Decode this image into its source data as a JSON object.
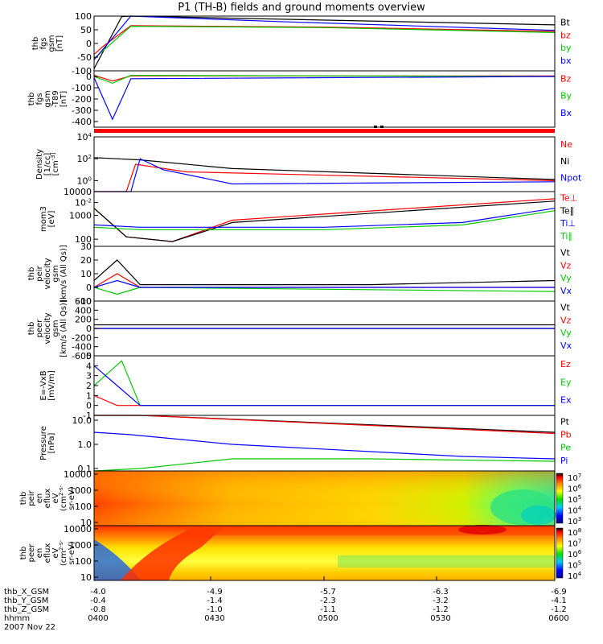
{
  "title": "P1 (TH-B) fields and ground moments overview",
  "chart_data": [
    {
      "type": "line",
      "ylabel": [
        "thb",
        "fgs",
        "gsm",
        "[nT]"
      ],
      "scale": "linear",
      "ylim": [
        -100,
        100
      ],
      "ticks": [
        "100",
        "50",
        "0",
        "-50",
        "-100"
      ],
      "tick_values": [
        100,
        50,
        0,
        -50,
        -100
      ],
      "series": [
        {
          "name": "Bt",
          "color": "#000000",
          "points": [
            [
              0,
              -92
            ],
            [
              0.06,
              98
            ],
            [
              0.08,
              100
            ],
            [
              1,
              68
            ]
          ]
        },
        {
          "name": "bz",
          "color": "#ff0000",
          "points": [
            [
              0,
              -40
            ],
            [
              0.02,
              -10
            ],
            [
              0.08,
              65
            ],
            [
              0.5,
              60
            ],
            [
              1,
              44
            ]
          ]
        },
        {
          "name": "by",
          "color": "#00c800",
          "points": [
            [
              0,
              -55
            ],
            [
              0.08,
              63
            ],
            [
              0.5,
              58
            ],
            [
              1,
              40
            ]
          ]
        },
        {
          "name": "bx",
          "color": "#0000ff",
          "points": [
            [
              0,
              -60
            ],
            [
              0.08,
              100
            ],
            [
              0.4,
              80
            ],
            [
              1,
              48
            ]
          ]
        }
      ]
    },
    {
      "type": "line",
      "ylabel": [
        "thb",
        "fgs",
        "gsm",
        "-T89",
        "[nT]"
      ],
      "scale": "linear",
      "ylim": [
        -450,
        50
      ],
      "ticks": [
        "0",
        "-100",
        "-200",
        "-300",
        "-400"
      ],
      "tick_values": [
        0,
        -100,
        -200,
        -300,
        -400
      ],
      "series": [
        {
          "name": "Bz",
          "color": "#ff0000",
          "points": [
            [
              0,
              10
            ],
            [
              0.04,
              -40
            ],
            [
              0.08,
              5
            ],
            [
              1,
              5
            ]
          ]
        },
        {
          "name": "By",
          "color": "#00c800",
          "points": [
            [
              0,
              0
            ],
            [
              0.04,
              -60
            ],
            [
              0.08,
              10
            ],
            [
              1,
              0
            ]
          ]
        },
        {
          "name": "Bx",
          "color": "#0000ff",
          "points": [
            [
              0,
              -10
            ],
            [
              0.04,
              -380
            ],
            [
              0.08,
              -20
            ],
            [
              1,
              0
            ]
          ]
        }
      ]
    },
    {
      "type": "line",
      "ylabel": [
        "Density",
        "[1/cc]",
        "[cm^-3]"
      ],
      "scale": "log",
      "ylim": [
        -1,
        4
      ],
      "ticks": [
        "10^4",
        "10^2",
        "10^0",
        "10^-2"
      ],
      "tick_values": [
        4,
        2,
        0,
        -2
      ],
      "series": [
        {
          "name": "Ne",
          "color": "#ff0000",
          "points": [
            [
              0,
              -1
            ],
            [
              0.07,
              -1
            ],
            [
              0.09,
              1.5
            ],
            [
              0.2,
              0.8
            ],
            [
              1,
              0
            ]
          ]
        },
        {
          "name": "Ni",
          "color": "#000000",
          "points": [
            [
              0,
              2.1
            ],
            [
              0.1,
              1.9
            ],
            [
              0.3,
              1.1
            ],
            [
              1,
              0.1
            ]
          ]
        },
        {
          "name": "Npot",
          "color": "#0000ff",
          "points": [
            [
              0,
              -1
            ],
            [
              0.08,
              -1
            ],
            [
              0.1,
              2
            ],
            [
              0.15,
              1
            ],
            [
              0.3,
              -0.3
            ],
            [
              1,
              -0.1
            ]
          ]
        }
      ]
    },
    {
      "type": "line",
      "ylabel": [
        "mom3",
        "[eV]"
      ],
      "scale": "log",
      "ylim": [
        1.7,
        4
      ],
      "ticks": [
        "10000",
        "1000",
        "100"
      ],
      "tick_values": [
        4,
        3,
        2
      ],
      "series": [
        {
          "name": "Te⊥",
          "color": "#ff0000",
          "points": [
            [
              0,
              3.3
            ],
            [
              0.07,
              2.1
            ],
            [
              0.17,
              1.9
            ],
            [
              0.3,
              2.8
            ],
            [
              1,
              3.7
            ]
          ]
        },
        {
          "name": "Te∥",
          "color": "#000000",
          "points": [
            [
              0,
              3.3
            ],
            [
              0.07,
              2.1
            ],
            [
              0.17,
              1.9
            ],
            [
              0.3,
              2.7
            ],
            [
              1,
              3.6
            ]
          ]
        },
        {
          "name": "Ti⊥",
          "color": "#0000ff",
          "points": [
            [
              0,
              2.6
            ],
            [
              0.1,
              2.5
            ],
            [
              0.5,
              2.5
            ],
            [
              0.8,
              2.7
            ],
            [
              1,
              3.3
            ]
          ]
        },
        {
          "name": "Ti∥",
          "color": "#00c800",
          "points": [
            [
              0,
              2.5
            ],
            [
              0.1,
              2.4
            ],
            [
              0.5,
              2.4
            ],
            [
              0.8,
              2.6
            ],
            [
              1,
              3.2
            ]
          ]
        }
      ]
    },
    {
      "type": "line",
      "ylabel": [
        "thb",
        "peir",
        "velocity",
        "gsm",
        "[km/s (All Qs)]"
      ],
      "scale": "linear",
      "ylim": [
        -10,
        30
      ],
      "ticks": [
        "30",
        "20",
        "10",
        "0",
        "-10"
      ],
      "tick_values": [
        30,
        20,
        10,
        0,
        -10
      ],
      "series": [
        {
          "name": "Vt",
          "color": "#000000",
          "points": [
            [
              0,
              5
            ],
            [
              0.05,
              20
            ],
            [
              0.1,
              2
            ],
            [
              0.6,
              2
            ],
            [
              1,
              5
            ]
          ]
        },
        {
          "name": "Vz",
          "color": "#ff0000",
          "points": [
            [
              0,
              0
            ],
            [
              0.05,
              10
            ],
            [
              0.1,
              0
            ],
            [
              1,
              0
            ]
          ]
        },
        {
          "name": "Vy",
          "color": "#00c800",
          "points": [
            [
              0,
              0
            ],
            [
              0.05,
              -5
            ],
            [
              0.1,
              0
            ],
            [
              1,
              -3
            ]
          ]
        },
        {
          "name": "Vx",
          "color": "#0000ff",
          "points": [
            [
              0,
              0
            ],
            [
              0.05,
              5
            ],
            [
              0.1,
              0
            ],
            [
              1,
              0
            ]
          ]
        }
      ]
    },
    {
      "type": "line",
      "ylabel": [
        "thb",
        "peer",
        "velocity",
        "gsm",
        "[km/s (All Qs)]"
      ],
      "scale": "linear",
      "ylim": [
        -600,
        600
      ],
      "ticks": [
        "600",
        "400",
        "200",
        "0",
        "-200",
        "-400",
        "-600"
      ],
      "tick_values": [
        600,
        400,
        200,
        0,
        -200,
        -400,
        -600
      ],
      "series": [
        {
          "name": "Vt",
          "color": "#000000",
          "points": [
            [
              0,
              80
            ],
            [
              1,
              80
            ]
          ]
        },
        {
          "name": "Vz",
          "color": "#ff0000",
          "points": [
            [
              0,
              0
            ],
            [
              1,
              0
            ]
          ]
        },
        {
          "name": "Vy",
          "color": "#00c800",
          "points": [
            [
              0,
              0
            ],
            [
              1,
              0
            ]
          ]
        },
        {
          "name": "Vx",
          "color": "#0000ff",
          "points": [
            [
              0,
              0
            ],
            [
              1,
              0
            ]
          ]
        }
      ]
    },
    {
      "type": "line",
      "ylabel": [
        "E=-VxB",
        "[mV/m]"
      ],
      "scale": "linear",
      "ylim": [
        -1,
        5
      ],
      "ticks": [
        "5",
        "4",
        "3",
        "2",
        "1",
        "0",
        "-1"
      ],
      "tick_values": [
        5,
        4,
        3,
        2,
        1,
        0,
        -1
      ],
      "series": [
        {
          "name": "Ez",
          "color": "#ff0000",
          "points": [
            [
              0,
              1
            ],
            [
              0.05,
              0
            ],
            [
              0.1,
              0
            ],
            [
              1,
              0
            ]
          ]
        },
        {
          "name": "Ey",
          "color": "#00c800",
          "points": [
            [
              0,
              2
            ],
            [
              0.06,
              4.5
            ],
            [
              0.1,
              0
            ],
            [
              1,
              0
            ]
          ]
        },
        {
          "name": "Ex",
          "color": "#0000ff",
          "points": [
            [
              0,
              4
            ],
            [
              0.05,
              2
            ],
            [
              0.1,
              0
            ],
            [
              1,
              0
            ]
          ]
        }
      ]
    },
    {
      "type": "line",
      "ylabel": [
        "Pressure",
        "[nPa]"
      ],
      "scale": "log",
      "ylim": [
        -1.1,
        1.2
      ],
      "ticks": [
        "10.0",
        "1.0",
        "0.1"
      ],
      "tick_values": [
        1,
        0,
        -1
      ],
      "series": [
        {
          "name": "Pt",
          "color": "#000000",
          "points": [
            [
              0,
              1.2
            ],
            [
              0.1,
              1.2
            ],
            [
              1,
              0.5
            ]
          ]
        },
        {
          "name": "Pb",
          "color": "#ff0000",
          "points": [
            [
              0,
              1.2
            ],
            [
              0.1,
              1.2
            ],
            [
              1,
              0.45
            ]
          ]
        },
        {
          "name": "Pe",
          "color": "#00c800",
          "points": [
            [
              0,
              -1.1
            ],
            [
              0.1,
              -1
            ],
            [
              0.3,
              -0.6
            ],
            [
              0.6,
              -0.6
            ],
            [
              1,
              -0.7
            ]
          ]
        },
        {
          "name": "Pi",
          "color": "#0000ff",
          "points": [
            [
              0,
              0.5
            ],
            [
              0.08,
              0.4
            ],
            [
              0.3,
              0
            ],
            [
              0.8,
              -0.5
            ],
            [
              1,
              -0.6
            ]
          ]
        }
      ]
    },
    {
      "type": "heatmap",
      "ylabel": [
        "thb",
        "peir",
        "en",
        "eflux",
        "eV",
        "(cm^2-s-",
        "sr-eV)"
      ],
      "scale": "log",
      "ylim": [
        0.8,
        4.2
      ],
      "ticks": [
        "10000",
        "1000",
        "100",
        "10"
      ],
      "tick_values": [
        4,
        3,
        2,
        1
      ],
      "colorbar": [
        "10^7",
        "10^6",
        "10^5",
        "10^4",
        "10^3"
      ]
    },
    {
      "type": "heatmap",
      "ylabel": [
        "thb",
        "peer",
        "en",
        "eflux",
        "eV",
        "(cm^2-s-",
        "sr-eV)"
      ],
      "scale": "log",
      "ylim": [
        0.8,
        4.2
      ],
      "ticks": [
        "10000",
        "1000",
        "100",
        "10"
      ],
      "tick_values": [
        4,
        3,
        2,
        1
      ],
      "colorbar": [
        "10^8",
        "10^7",
        "10^6",
        "10^5",
        "10^4"
      ]
    }
  ],
  "x_axis": {
    "rows": [
      {
        "label": "thb_X_GSM",
        "values": [
          "-4.0",
          "-4.9",
          "-5.7",
          "-6.3",
          "-6.9"
        ]
      },
      {
        "label": "thb_Y_GSM",
        "values": [
          "-0.4",
          "-1.4",
          "-2.3",
          "-3.2",
          "-4.1"
        ]
      },
      {
        "label": "thb_Z_GSM",
        "values": [
          "-0.8",
          "-1.0",
          "-1.1",
          "-1.2",
          "-1.2"
        ]
      },
      {
        "label": "hhmm",
        "values": [
          "0400",
          "0430",
          "0500",
          "0530",
          "0600"
        ]
      }
    ],
    "date": "2007 Nov 22"
  }
}
